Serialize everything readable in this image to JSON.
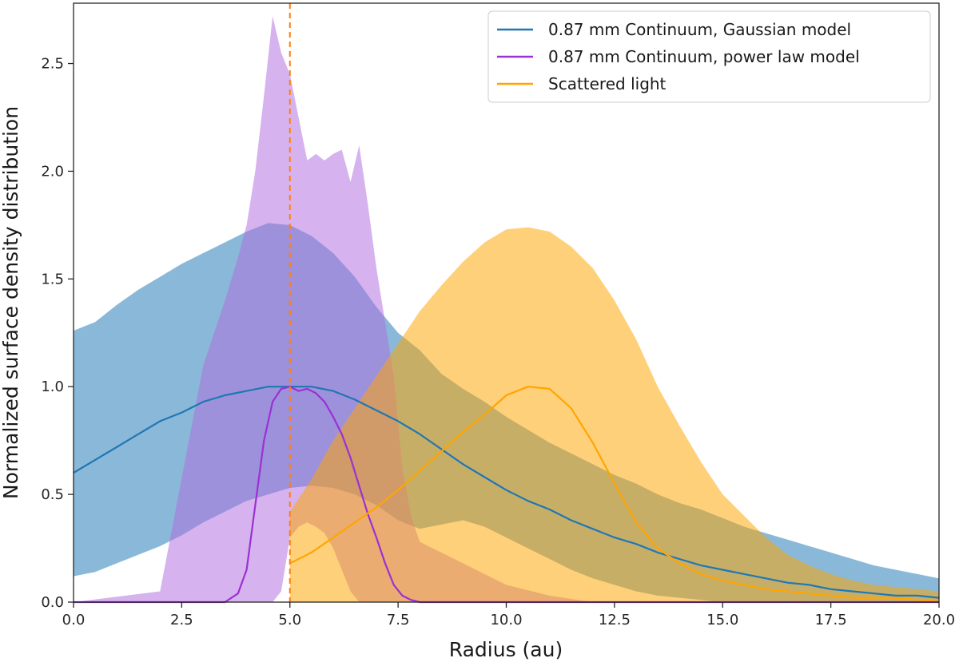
{
  "chart_data": {
    "type": "line",
    "title": "",
    "xlabel": "Radius (au)",
    "ylabel": "Normalized surface density distribution",
    "xlim": [
      0,
      20
    ],
    "ylim": [
      0,
      2.78
    ],
    "xticks": [
      0.0,
      2.5,
      5.0,
      7.5,
      10.0,
      12.5,
      15.0,
      17.5,
      20.0
    ],
    "xtick_labels": [
      "0.0",
      "2.5",
      "5.0",
      "7.5",
      "10.0",
      "12.5",
      "15.0",
      "17.5",
      "20.0"
    ],
    "yticks": [
      0.0,
      0.5,
      1.0,
      1.5,
      2.0,
      2.5
    ],
    "ytick_labels": [
      "0.0",
      "0.5",
      "1.0",
      "1.5",
      "2.0",
      "2.5"
    ],
    "grid": false,
    "legend_position": "top-right",
    "vline": {
      "x": 5.0,
      "color": "#ff7f0e",
      "style": "dashed"
    },
    "series": [
      {
        "name": "0.87 mm Continuum, Gaussian model",
        "color": "#1f77b4",
        "band_color": "#1f77b4",
        "x": [
          0,
          0.5,
          1,
          1.5,
          2,
          2.5,
          3,
          3.5,
          4,
          4.5,
          5,
          5.5,
          6,
          6.5,
          7,
          7.5,
          8,
          8.5,
          9,
          9.5,
          10,
          10.5,
          11,
          11.5,
          12,
          12.5,
          13,
          13.5,
          14,
          14.5,
          15,
          15.5,
          16,
          16.5,
          17,
          17.5,
          18,
          18.5,
          19,
          19.5,
          20
        ],
        "values": [
          0.6,
          0.66,
          0.72,
          0.78,
          0.84,
          0.88,
          0.93,
          0.96,
          0.98,
          1.0,
          1.0,
          1.0,
          0.98,
          0.94,
          0.89,
          0.84,
          0.78,
          0.71,
          0.64,
          0.58,
          0.52,
          0.47,
          0.43,
          0.38,
          0.34,
          0.3,
          0.27,
          0.23,
          0.2,
          0.17,
          0.15,
          0.13,
          0.11,
          0.09,
          0.08,
          0.06,
          0.05,
          0.04,
          0.03,
          0.03,
          0.02
        ],
        "upper": [
          1.26,
          1.3,
          1.38,
          1.45,
          1.51,
          1.57,
          1.62,
          1.67,
          1.72,
          1.76,
          1.75,
          1.7,
          1.62,
          1.51,
          1.37,
          1.25,
          1.17,
          1.06,
          0.99,
          0.93,
          0.86,
          0.8,
          0.74,
          0.69,
          0.64,
          0.59,
          0.55,
          0.5,
          0.46,
          0.43,
          0.39,
          0.35,
          0.32,
          0.29,
          0.26,
          0.23,
          0.2,
          0.17,
          0.15,
          0.13,
          0.11
        ],
        "lower": [
          0.12,
          0.14,
          0.18,
          0.22,
          0.26,
          0.31,
          0.37,
          0.42,
          0.47,
          0.5,
          0.53,
          0.54,
          0.53,
          0.5,
          0.45,
          0.38,
          0.34,
          0.36,
          0.38,
          0.35,
          0.3,
          0.25,
          0.2,
          0.15,
          0.11,
          0.08,
          0.05,
          0.03,
          0.02,
          0.01,
          0.0,
          0.0,
          0.0,
          0.0,
          0.0,
          0.0,
          0.0,
          0.0,
          0.0,
          0.0,
          0.0
        ]
      },
      {
        "name": "0.87 mm Continuum, power law model",
        "color": "#9b30d3",
        "band_color": "#b06de0",
        "x": [
          0,
          2,
          3,
          3.5,
          3.8,
          4,
          4.2,
          4.4,
          4.6,
          4.8,
          5,
          5.2,
          5.4,
          5.6,
          5.8,
          6,
          6.2,
          6.4,
          6.6,
          6.8,
          7,
          7.2,
          7.4,
          7.6,
          7.8,
          8,
          9,
          10,
          11,
          12,
          20
        ],
        "values": [
          0.0,
          0.0,
          0.0,
          0.0,
          0.04,
          0.15,
          0.45,
          0.75,
          0.93,
          0.99,
          1.0,
          0.98,
          0.99,
          0.97,
          0.93,
          0.86,
          0.78,
          0.67,
          0.54,
          0.41,
          0.3,
          0.18,
          0.08,
          0.03,
          0.01,
          0.0,
          0.0,
          0.0,
          0.0,
          0.0,
          0.0
        ],
        "upper": [
          0.0,
          0.05,
          1.1,
          1.4,
          1.6,
          1.75,
          2.0,
          2.35,
          2.72,
          2.55,
          2.45,
          2.25,
          2.05,
          2.08,
          2.05,
          2.08,
          2.1,
          1.95,
          2.12,
          1.85,
          1.55,
          1.3,
          1.05,
          0.62,
          0.4,
          0.28,
          0.18,
          0.08,
          0.03,
          0.0,
          0.0
        ],
        "lower": [
          0.0,
          0.0,
          0.0,
          0.0,
          0.0,
          0.0,
          0.0,
          0.0,
          0.0,
          0.05,
          0.3,
          0.35,
          0.37,
          0.35,
          0.32,
          0.25,
          0.15,
          0.05,
          0.0,
          0.0,
          0.0,
          0.0,
          0.0,
          0.0,
          0.0,
          0.0,
          0.0,
          0.0,
          0.0,
          0.0,
          0.0
        ]
      },
      {
        "name": "Scattered light",
        "color": "#ffa500",
        "band_color": "#ffa500",
        "x": [
          5,
          5.5,
          6,
          6.5,
          7,
          7.5,
          8,
          8.5,
          9,
          9.5,
          10,
          10.5,
          11,
          11.5,
          12,
          12.5,
          13,
          13.5,
          14,
          14.5,
          15,
          15.5,
          16,
          16.5,
          17,
          17.5,
          18,
          18.5,
          19,
          19.5,
          20
        ],
        "values": [
          0.18,
          0.23,
          0.3,
          0.37,
          0.44,
          0.52,
          0.61,
          0.7,
          0.79,
          0.87,
          0.96,
          1.0,
          0.99,
          0.9,
          0.74,
          0.55,
          0.37,
          0.25,
          0.18,
          0.13,
          0.1,
          0.08,
          0.06,
          0.05,
          0.04,
          0.03,
          0.02,
          0.02,
          0.02,
          0.01,
          0.01
        ],
        "upper": [
          0.42,
          0.57,
          0.75,
          0.9,
          1.05,
          1.2,
          1.35,
          1.47,
          1.58,
          1.67,
          1.73,
          1.74,
          1.72,
          1.65,
          1.55,
          1.4,
          1.22,
          1.0,
          0.82,
          0.65,
          0.5,
          0.4,
          0.3,
          0.22,
          0.17,
          0.13,
          0.1,
          0.08,
          0.07,
          0.06,
          0.05
        ],
        "lower": [
          0.0,
          0.0,
          0.0,
          0.0,
          0.0,
          0.0,
          0.0,
          0.0,
          0.0,
          0.0,
          0.0,
          0.0,
          0.0,
          0.0,
          0.0,
          0.0,
          0.0,
          0.0,
          0.0,
          0.0,
          0.0,
          0.0,
          0.0,
          0.0,
          0.0,
          0.0,
          0.0,
          0.0,
          0.0,
          0.0,
          0.0
        ]
      }
    ]
  }
}
